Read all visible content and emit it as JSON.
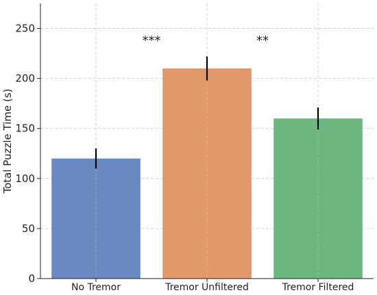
{
  "chart_data": {
    "type": "bar",
    "title": "",
    "xlabel": "",
    "ylabel": "Total Puzzle Time (s)",
    "categories": [
      "No Tremor",
      "Tremor Unfiltered",
      "Tremor Filtered"
    ],
    "values": [
      120,
      210,
      160
    ],
    "errors": [
      10,
      12,
      11
    ],
    "bar_colors": [
      "#6a89c0",
      "#e1986b",
      "#6db67f"
    ],
    "ylim": [
      0,
      275
    ],
    "yticks": [
      0,
      50,
      100,
      150,
      200,
      250
    ],
    "grid": true,
    "annotations": [
      {
        "text": "***",
        "x": 0.5,
        "y": 238
      },
      {
        "text": "**",
        "x": 1.5,
        "y": 238
      }
    ]
  }
}
